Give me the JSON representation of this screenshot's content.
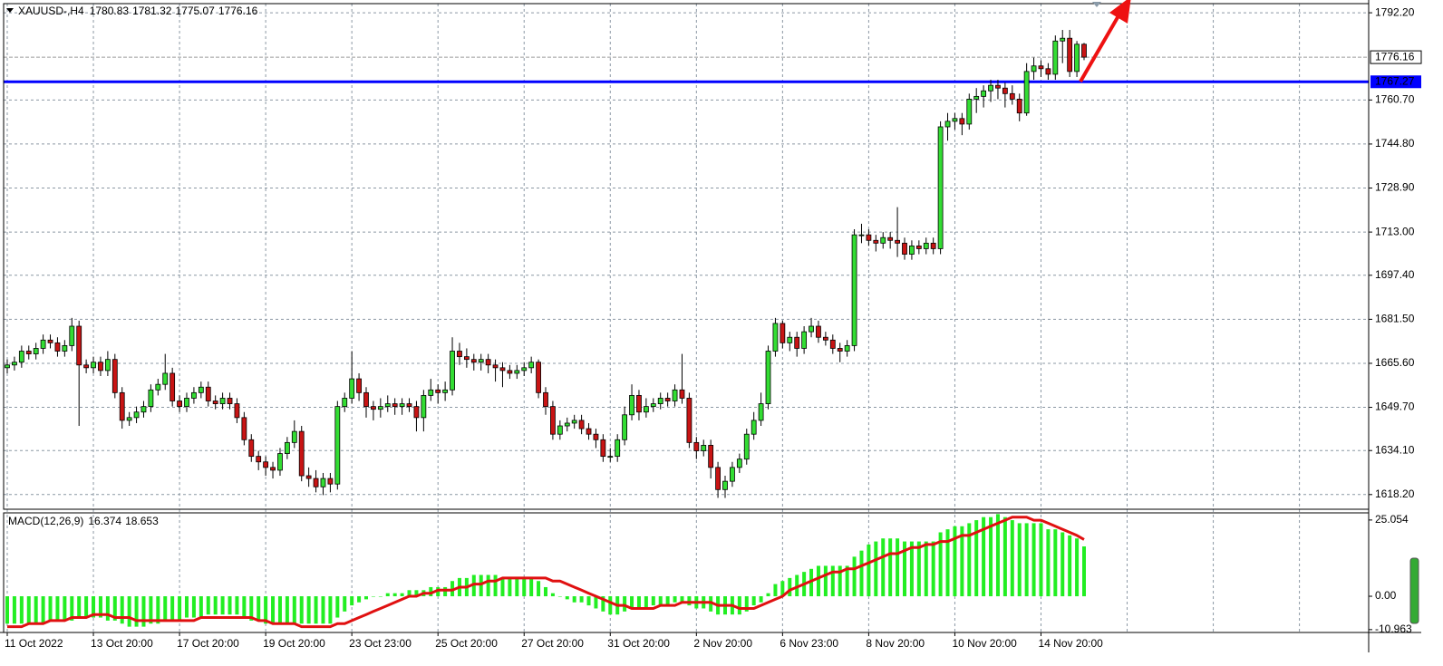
{
  "chart_data": [
    {
      "type": "candlestick",
      "title": "XAUUSD-,H4",
      "last_ohlc": [
        1780.83,
        1781.32,
        1775.07,
        1776.16
      ],
      "categories": [
        "11 Oct 2022",
        null,
        null,
        null,
        null,
        null,
        null,
        null,
        null,
        null,
        null,
        null,
        "13 Oct 20:00",
        null,
        null,
        null,
        null,
        null,
        null,
        null,
        null,
        null,
        null,
        null,
        "17 Oct 20:00",
        null,
        null,
        null,
        null,
        null,
        null,
        null,
        null,
        null,
        null,
        null,
        "19 Oct 20:00",
        null,
        null,
        null,
        null,
        null,
        null,
        null,
        null,
        null,
        null,
        null,
        "23 Oct 23:00",
        null,
        null,
        null,
        null,
        null,
        null,
        null,
        null,
        null,
        null,
        null,
        "25 Oct 20:00",
        null,
        null,
        null,
        null,
        null,
        null,
        null,
        null,
        null,
        null,
        null,
        "27 Oct 20:00",
        null,
        null,
        null,
        null,
        null,
        null,
        null,
        null,
        null,
        null,
        null,
        "31 Oct 20:00",
        null,
        null,
        null,
        null,
        null,
        null,
        null,
        null,
        null,
        null,
        null,
        "2 Nov 20:00",
        null,
        null,
        null,
        null,
        null,
        null,
        null,
        null,
        null,
        null,
        null,
        "6 Nov 23:00",
        null,
        null,
        null,
        null,
        null,
        null,
        null,
        null,
        null,
        null,
        null,
        "8 Nov 20:00",
        null,
        null,
        null,
        null,
        null,
        null,
        null,
        null,
        null,
        null,
        null,
        "10 Nov 20:00",
        null,
        null,
        null,
        null,
        null,
        null,
        null,
        null,
        null,
        null,
        null,
        "14 Nov 20:00",
        null,
        null,
        null,
        null,
        null,
        null
      ],
      "open": [
        1664,
        1665,
        1666,
        1670,
        1669,
        1671,
        1674,
        1673,
        1670,
        1672,
        1679,
        1665,
        1664,
        1666,
        1663,
        1667,
        1655,
        1645,
        1646,
        1648,
        1650,
        1656,
        1658,
        1662,
        1652,
        1650,
        1653,
        1655,
        1657,
        1652,
        1651,
        1653,
        1651,
        1646,
        1638,
        1632,
        1630,
        1628,
        1627,
        1633,
        1637,
        1641,
        1625,
        1624,
        1621,
        1624,
        1622,
        1650,
        1653,
        1660,
        1655,
        1650,
        1649,
        1650,
        1651,
        1650,
        1651,
        1650,
        1646,
        1654,
        1656,
        1655,
        1656,
        1670,
        1668,
        1667,
        1666,
        1667,
        1665,
        1664,
        1663,
        1662,
        1663,
        1664,
        1666,
        1655,
        1650,
        1640,
        1643,
        1644,
        1645,
        1642,
        1640,
        1638,
        1632,
        1632,
        1638,
        1647,
        1654,
        1648,
        1650,
        1651,
        1653,
        1652,
        1656,
        1653,
        1637,
        1634,
        1636,
        1628,
        1620,
        1623,
        1628,
        1631,
        1640,
        1645,
        1651,
        1670,
        1680,
        1673,
        1675,
        1671,
        1677,
        1679,
        1675,
        1674,
        1671,
        1670,
        1672,
        1712,
        1712,
        1710,
        1709,
        1711,
        1710,
        1709,
        1705,
        1708,
        1707,
        1709,
        1707,
        1751,
        1753,
        1754,
        1752,
        1761,
        1762,
        1764,
        1766,
        1765,
        1763,
        1761,
        1756,
        1771,
        1773,
        1772,
        1770,
        1782,
        1783,
        1771,
        1780.83
      ],
      "high": [
        1667,
        1668,
        1672,
        1672,
        1673,
        1676,
        1676,
        1675,
        1674,
        1682,
        1681,
        1667,
        1668,
        1668,
        1670,
        1669,
        1657,
        1648,
        1650,
        1652,
        1658,
        1660,
        1669,
        1664,
        1654,
        1655,
        1657,
        1659,
        1659,
        1654,
        1655,
        1655,
        1653,
        1648,
        1640,
        1634,
        1632,
        1630,
        1635,
        1639,
        1645,
        1643,
        1628,
        1627,
        1626,
        1626,
        1652,
        1655,
        1670,
        1662,
        1657,
        1652,
        1653,
        1654,
        1653,
        1653,
        1653,
        1652,
        1656,
        1660,
        1658,
        1659,
        1675,
        1673,
        1671,
        1669,
        1669,
        1669,
        1667,
        1666,
        1665,
        1665,
        1666,
        1668,
        1667,
        1657,
        1652,
        1645,
        1646,
        1647,
        1647,
        1644,
        1642,
        1640,
        1635,
        1640,
        1650,
        1658,
        1656,
        1653,
        1653,
        1655,
        1655,
        1658,
        1669,
        1655,
        1639,
        1638,
        1638,
        1630,
        1625,
        1630,
        1633,
        1642,
        1648,
        1655,
        1672,
        1682,
        1681,
        1677,
        1677,
        1679,
        1682,
        1681,
        1677,
        1676,
        1673,
        1674,
        1714,
        1716,
        1714,
        1712,
        1713,
        1713,
        1722,
        1711,
        1710,
        1710,
        1711,
        1711,
        1753,
        1756,
        1756,
        1756,
        1763,
        1765,
        1766,
        1768,
        1768,
        1767,
        1766,
        1763,
        1774,
        1776,
        1775,
        1774,
        1784,
        1786,
        1786,
        1782,
        1781.32
      ],
      "low": [
        1662,
        1663,
        1664,
        1667,
        1667,
        1669,
        1671,
        1668,
        1668,
        1670,
        1643,
        1662,
        1662,
        1661,
        1661,
        1653,
        1642,
        1643,
        1644,
        1646,
        1648,
        1654,
        1656,
        1650,
        1648,
        1648,
        1651,
        1653,
        1650,
        1649,
        1649,
        1649,
        1644,
        1636,
        1630,
        1627,
        1625,
        1624,
        1625,
        1631,
        1635,
        1623,
        1621,
        1619,
        1618,
        1619,
        1620,
        1648,
        1651,
        1652,
        1646,
        1645,
        1646,
        1648,
        1647,
        1647,
        1648,
        1641,
        1641,
        1652,
        1651,
        1652,
        1654,
        1665,
        1664,
        1663,
        1663,
        1662,
        1659,
        1657,
        1660,
        1660,
        1661,
        1662,
        1653,
        1647,
        1638,
        1638,
        1641,
        1642,
        1640,
        1638,
        1635,
        1630,
        1630,
        1630,
        1636,
        1645,
        1645,
        1646,
        1648,
        1649,
        1650,
        1650,
        1651,
        1635,
        1631,
        1632,
        1624,
        1617,
        1617,
        1621,
        1626,
        1629,
        1638,
        1643,
        1649,
        1668,
        1671,
        1670,
        1668,
        1669,
        1675,
        1673,
        1672,
        1669,
        1666,
        1668,
        1670,
        1709,
        1708,
        1706,
        1707,
        1707,
        1704,
        1703,
        1703,
        1705,
        1705,
        1705,
        1705,
        1746,
        1750,
        1748,
        1750,
        1756,
        1758,
        1760,
        1761,
        1758,
        1759,
        1753,
        1755,
        1768,
        1769,
        1768,
        1768,
        1774,
        1769,
        1769,
        1775.07
      ],
      "close": [
        1665,
        1666,
        1670,
        1669,
        1671,
        1674,
        1673,
        1670,
        1672,
        1679,
        1665,
        1664,
        1666,
        1663,
        1667,
        1655,
        1645,
        1646,
        1648,
        1650,
        1656,
        1658,
        1662,
        1652,
        1650,
        1653,
        1655,
        1657,
        1652,
        1651,
        1653,
        1651,
        1646,
        1638,
        1632,
        1630,
        1628,
        1627,
        1633,
        1637,
        1641,
        1625,
        1624,
        1621,
        1624,
        1622,
        1650,
        1653,
        1660,
        1655,
        1650,
        1649,
        1650,
        1651,
        1650,
        1651,
        1650,
        1646,
        1654,
        1656,
        1655,
        1656,
        1670,
        1668,
        1667,
        1666,
        1667,
        1665,
        1664,
        1663,
        1662,
        1663,
        1664,
        1666,
        1655,
        1650,
        1640,
        1643,
        1644,
        1645,
        1642,
        1640,
        1638,
        1632,
        1632,
        1638,
        1647,
        1654,
        1648,
        1650,
        1651,
        1653,
        1652,
        1656,
        1653,
        1637,
        1634,
        1636,
        1628,
        1620,
        1623,
        1628,
        1631,
        1640,
        1645,
        1651,
        1670,
        1680,
        1673,
        1675,
        1671,
        1677,
        1679,
        1675,
        1674,
        1671,
        1670,
        1672,
        1712,
        1712,
        1710,
        1709,
        1711,
        1710,
        1709,
        1705,
        1708,
        1707,
        1709,
        1707,
        1751,
        1753,
        1754,
        1752,
        1761,
        1762,
        1764,
        1766,
        1765,
        1763,
        1761,
        1756,
        1771,
        1773,
        1772,
        1770,
        1782,
        1783,
        1771,
        1780.83,
        1776.16
      ],
      "up_color": "#33dd33",
      "down_color": "#c81414",
      "current_line_color": "#9a9a9a",
      "hline": {
        "value": 1767.27,
        "color": "#0000ff"
      },
      "ylim": [
        1612.9,
        1795.5
      ],
      "yticks": [
        {
          "value": 1792.2,
          "label": "1792.20"
        },
        {
          "value": 1760.7,
          "label": "1760.70"
        },
        {
          "value": 1744.8,
          "label": "1744.80"
        },
        {
          "value": 1728.9,
          "label": "1728.90"
        },
        {
          "value": 1713,
          "label": "1713.00"
        },
        {
          "value": 1697.4,
          "label": "1697.40"
        },
        {
          "value": 1681.5,
          "label": "1681.50"
        },
        {
          "value": 1665.6,
          "label": "1665.60"
        },
        {
          "value": 1649.7,
          "label": "1649.70"
        },
        {
          "value": 1634.1,
          "label": "1634.10"
        },
        {
          "value": 1618.2,
          "label": "1618.20"
        }
      ],
      "grid": true
    },
    {
      "type": "macd",
      "title": "MACD(12,26,9)",
      "histogram": {
        "color": "#22ee22",
        "values": [
          -9,
          -9,
          -9,
          -9,
          -9,
          -9,
          -8,
          -8,
          -8,
          -8,
          -7,
          -7,
          -7,
          -7,
          -8,
          -8,
          -9,
          -10,
          -10,
          -10,
          -9,
          -9,
          -8,
          -8,
          -8,
          -7,
          -7,
          -7,
          -6,
          -6,
          -6,
          -6,
          -6,
          -7,
          -8,
          -8,
          -9,
          -9,
          -9,
          -9,
          -9,
          -9,
          -9,
          -9,
          -9,
          -9,
          -7,
          -5,
          -3,
          -2,
          -1,
          0,
          0,
          1,
          1,
          1,
          2,
          2,
          2,
          3,
          3,
          3,
          5,
          6,
          6,
          7,
          7,
          7,
          7,
          6,
          6,
          6,
          6,
          6,
          5,
          3,
          1,
          0,
          -1,
          -2,
          -2,
          -3,
          -4,
          -5,
          -6,
          -6,
          -5,
          -4,
          -4,
          -4,
          -3,
          -3,
          -3,
          -2,
          -2,
          -3,
          -4,
          -4,
          -5,
          -6,
          -6,
          -6,
          -6,
          -5,
          -3,
          -2,
          1,
          4,
          5,
          6,
          7,
          8,
          9,
          10,
          10,
          10,
          10,
          10,
          13,
          15,
          17,
          18,
          19,
          19,
          19,
          18,
          18,
          18,
          18,
          18,
          21,
          22,
          23,
          23,
          24,
          25,
          26,
          26,
          27,
          26,
          25,
          24,
          24,
          24,
          24,
          22,
          22,
          21,
          20,
          19,
          16.374
        ]
      },
      "signal": {
        "color": "#e01010",
        "values": [
          -10,
          -10,
          -10,
          -9,
          -9,
          -9,
          -8,
          -8,
          -8,
          -7,
          -7,
          -7,
          -6,
          -6,
          -6,
          -7,
          -7,
          -7,
          -8,
          -8,
          -8,
          -8,
          -8,
          -8,
          -8,
          -8,
          -8,
          -7,
          -7,
          -7,
          -7,
          -7,
          -7,
          -7,
          -7,
          -8,
          -8,
          -9,
          -9,
          -9,
          -9,
          -10,
          -10,
          -10,
          -10,
          -10,
          -9,
          -9,
          -8,
          -7,
          -6,
          -5,
          -4,
          -3,
          -2,
          -1,
          0,
          0,
          1,
          1,
          2,
          2,
          2,
          3,
          3,
          4,
          4,
          5,
          5,
          6,
          6,
          6,
          6,
          6,
          6,
          6,
          5,
          5,
          4,
          3,
          2,
          1,
          0,
          -1,
          -2,
          -3,
          -3,
          -4,
          -4,
          -4,
          -4,
          -3,
          -3,
          -3,
          -2,
          -2,
          -2,
          -2,
          -2,
          -3,
          -3,
          -3,
          -4,
          -4,
          -4,
          -3,
          -2,
          -1,
          0,
          2,
          3,
          4,
          5,
          6,
          7,
          8,
          8,
          9,
          9,
          10,
          11,
          12,
          13,
          14,
          14,
          15,
          16,
          16,
          17,
          17,
          18,
          18,
          19,
          20,
          20,
          21,
          22,
          23,
          24,
          25,
          26,
          26,
          26,
          25,
          25,
          24,
          23,
          22,
          21,
          20,
          18.653
        ]
      },
      "ylim": [
        -11.9,
        27.4
      ],
      "yticks": [
        25.054,
        {
          "value": 0,
          "label": "0.00"
        },
        -10.963
      ]
    }
  ]
}
